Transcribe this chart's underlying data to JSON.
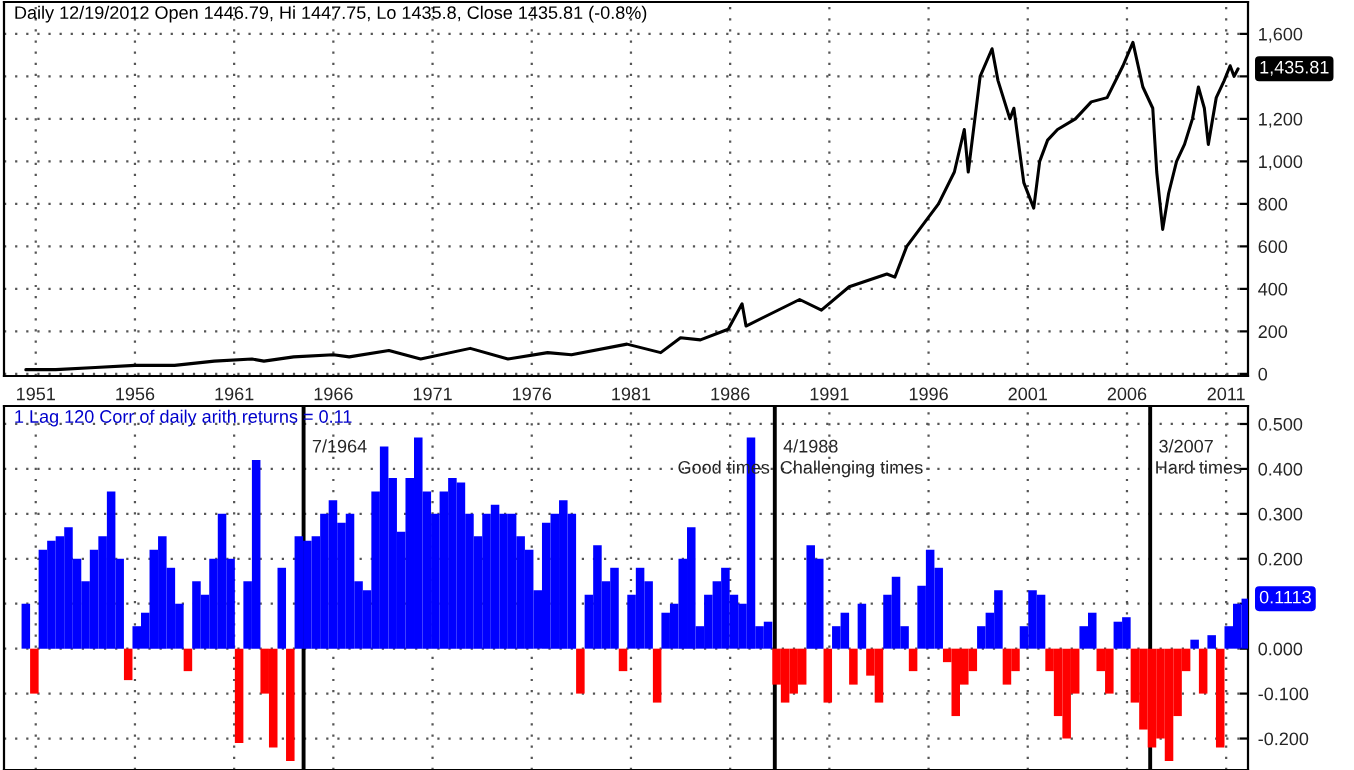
{
  "chart_data": [
    {
      "type": "line",
      "title": "Daily 12/19/2012 Open 1446.79, Hi 1447.75, Lo 1435.8, Close 1435.81 (-0.8%)",
      "grid": true,
      "xlim": [
        1949.4,
        2012.1
      ],
      "ylim": [
        -10,
        1750
      ],
      "xticks": [
        1951,
        1956,
        1961,
        1966,
        1971,
        1976,
        1981,
        1986,
        1991,
        1996,
        2001,
        2006,
        2011
      ],
      "yticks": [
        0,
        200,
        400,
        600,
        800,
        {
          "value": 1000,
          "label": "1,000"
        },
        {
          "value": 1200,
          "label": "1,200"
        },
        {
          "value": 1400,
          "label": null
        },
        {
          "value": 1600,
          "label": "1,600"
        }
      ],
      "series": [
        {
          "color": "#000000",
          "x": [
            1950.5,
            1952,
            1954,
            1956,
            1958,
            1960,
            1961.9,
            1962.5,
            1964,
            1966,
            1966.8,
            1968.8,
            1970.4,
            1972.9,
            1974.8,
            1976.8,
            1978,
            1980.8,
            1982.5,
            1983.5,
            1984.5,
            1985.9,
            1986.6,
            1986.8,
            1989.5,
            1990.6,
            1992,
            1993.9,
            1994.3,
            1994.9,
            1996.5,
            1997.3,
            1997.8,
            1998.0,
            1998.6,
            1999.2,
            1999.5,
            2000.1,
            2000.3,
            2000.8,
            2001.3,
            2001.6,
            2002.0,
            2002.5,
            2003.4,
            2004.2,
            2005.0,
            2005.8,
            2006.3,
            2006.8,
            2007.3,
            2007.5,
            2007.8,
            2008.1,
            2008.5,
            2008.9,
            2009.3,
            2009.6,
            2009.9,
            2010.1,
            2010.5,
            2010.9,
            2011.2,
            2011.4,
            2011.6
          ],
          "values": [
            20,
            20,
            30,
            40,
            40,
            60,
            70,
            60,
            80,
            90,
            80,
            110,
            70,
            120,
            70,
            100,
            90,
            140,
            100,
            170,
            160,
            210,
            330,
            225,
            350,
            300,
            410,
            470,
            455,
            600,
            800,
            950,
            1150,
            950,
            1400,
            1530,
            1380,
            1200,
            1250,
            900,
            780,
            1000,
            1100,
            1150,
            1200,
            1280,
            1300,
            1450,
            1560,
            1350,
            1250,
            950,
            680,
            850,
            1000,
            1080,
            1200,
            1350,
            1250,
            1080,
            1300,
            1380,
            1450,
            1400,
            1435.81
          ]
        }
      ],
      "annotations": [
        {
          "text": "1,435.81",
          "x": 2011.6,
          "y": 1435.81
        }
      ]
    },
    {
      "type": "bar",
      "title": "1 Lag 120 Corr of daily arith returns = 0.11",
      "grid": true,
      "tick_labels": "y",
      "xlim": [
        1949.4,
        2012.1
      ],
      "ylim": [
        -0.27,
        0.54
      ],
      "xticks": [
        1951,
        1956,
        1961,
        1966,
        1971,
        1976,
        1981,
        1986,
        1991,
        1996,
        2001,
        2006,
        2011
      ],
      "yticks": [
        {
          "value": -0.2,
          "label": "-0.200"
        },
        {
          "value": -0.1,
          "label": "-0.100"
        },
        {
          "value": 0,
          "label": "0.000"
        },
        {
          "value": 0.1,
          "label": null
        },
        {
          "value": 0.2,
          "label": "0.200"
        },
        {
          "value": 0.3,
          "label": "0.300"
        },
        {
          "value": 0.4,
          "label": "0.400"
        },
        {
          "value": 0.5,
          "label": "0.500"
        }
      ],
      "x": [
        1950.5,
        1950.93,
        1951.36,
        1951.79,
        1952.22,
        1952.65,
        1953.08,
        1953.51,
        1953.94,
        1954.37,
        1954.8,
        1955.23,
        1955.66,
        1956.09,
        1956.52,
        1956.95,
        1957.38,
        1957.81,
        1958.24,
        1958.67,
        1959.1,
        1959.53,
        1959.96,
        1960.39,
        1960.82,
        1961.25,
        1961.68,
        1962.11,
        1962.54,
        1962.97,
        1963.4,
        1963.83,
        1964.26,
        1964.69,
        1965.12,
        1965.55,
        1965.98,
        1966.41,
        1966.84,
        1967.27,
        1967.7,
        1968.13,
        1968.56,
        1968.99,
        1969.42,
        1969.85,
        1970.28,
        1970.71,
        1971.14,
        1971.57,
        1972.0,
        1972.43,
        1972.86,
        1973.29,
        1973.72,
        1974.15,
        1974.58,
        1975.01,
        1975.44,
        1975.87,
        1976.3,
        1976.73,
        1977.16,
        1977.59,
        1978.02,
        1978.45,
        1978.88,
        1979.31,
        1979.74,
        1980.17,
        1980.6,
        1981.03,
        1981.46,
        1981.89,
        1982.32,
        1982.75,
        1983.18,
        1983.61,
        1984.04,
        1984.47,
        1984.9,
        1985.33,
        1985.76,
        1986.19,
        1986.62,
        1987.05,
        1987.48,
        1987.91,
        1988.34,
        1988.77,
        1989.2,
        1989.63,
        1990.06,
        1990.49,
        1990.92,
        1991.35,
        1991.78,
        1992.21,
        1992.64,
        1993.07,
        1993.5,
        1993.93,
        1994.36,
        1994.79,
        1995.22,
        1995.65,
        1996.08,
        1996.51,
        1996.94,
        1997.37,
        1997.8,
        1998.23,
        1998.66,
        1999.09,
        1999.52,
        1999.95,
        2000.38,
        2000.81,
        2001.24,
        2001.67,
        2002.1,
        2002.53,
        2002.96,
        2003.39,
        2003.82,
        2004.25,
        2004.68,
        2005.11,
        2005.54,
        2005.97,
        2006.4,
        2006.83,
        2007.26,
        2007.69,
        2008.12,
        2008.55,
        2008.98,
        2009.41,
        2009.84,
        2010.27,
        2010.7,
        2011.13,
        2011.56,
        2011.99
      ],
      "values": [
        0.1,
        -0.1,
        0.22,
        0.24,
        0.25,
        0.27,
        0.2,
        0.15,
        0.22,
        0.25,
        0.35,
        0.2,
        -0.07,
        0.05,
        0.08,
        0.22,
        0.25,
        0.18,
        0.1,
        -0.05,
        0.15,
        0.12,
        0.2,
        0.3,
        0.2,
        -0.21,
        0.15,
        0.42,
        -0.1,
        -0.22,
        0.18,
        -0.25,
        0.25,
        0.24,
        0.25,
        0.3,
        0.33,
        0.28,
        0.3,
        0.15,
        0.13,
        0.35,
        0.45,
        0.38,
        0.26,
        0.38,
        0.47,
        0.35,
        0.3,
        0.35,
        0.38,
        0.37,
        0.3,
        0.25,
        0.3,
        0.32,
        0.3,
        0.3,
        0.25,
        0.22,
        0.13,
        0.28,
        0.3,
        0.33,
        0.3,
        -0.1,
        0.12,
        0.23,
        0.15,
        0.18,
        -0.05,
        0.12,
        0.18,
        0.15,
        -0.12,
        0.08,
        0.1,
        0.2,
        0.27,
        0.05,
        0.12,
        0.15,
        0.18,
        0.12,
        0.1,
        0.47,
        0.05,
        0.06,
        -0.08,
        -0.12,
        -0.1,
        -0.08,
        0.23,
        0.2,
        -0.12,
        0.05,
        0.08,
        -0.08,
        0.1,
        -0.06,
        -0.12,
        0.12,
        0.16,
        0.05,
        -0.05,
        0.14,
        0.22,
        0.18,
        -0.03,
        -0.15,
        -0.08,
        -0.05,
        0.05,
        0.08,
        0.13,
        -0.08,
        -0.05,
        0.05,
        0.13,
        0.12,
        -0.05,
        -0.15,
        -0.2,
        -0.1,
        0.05,
        0.08,
        -0.05,
        -0.1,
        0.06,
        0.07,
        -0.12,
        -0.18,
        -0.22,
        -0.2,
        -0.25,
        -0.15,
        -0.05,
        0.02,
        -0.1,
        0.03,
        -0.22,
        0.05,
        0.1,
        0.1113
      ],
      "colors": [
        "#0000ff",
        "#ff0000",
        "#0000ff",
        "#0000ff",
        "#0000ff",
        "#0000ff",
        "#0000ff",
        "#0000ff",
        "#0000ff",
        "#0000ff",
        "#0000ff",
        "#0000ff",
        "#ff0000",
        "#0000ff",
        "#0000ff",
        "#0000ff",
        "#0000ff",
        "#0000ff",
        "#0000ff",
        "#ff0000",
        "#0000ff",
        "#0000ff",
        "#0000ff",
        "#0000ff",
        "#0000ff",
        "#ff0000",
        "#0000ff",
        "#0000ff",
        "#ff0000",
        "#ff0000",
        "#0000ff",
        "#ff0000",
        "#0000ff",
        "#0000ff",
        "#0000ff",
        "#0000ff",
        "#0000ff",
        "#0000ff",
        "#0000ff",
        "#0000ff",
        "#0000ff",
        "#0000ff",
        "#0000ff",
        "#0000ff",
        "#0000ff",
        "#0000ff",
        "#0000ff",
        "#0000ff",
        "#0000ff",
        "#0000ff",
        "#0000ff",
        "#0000ff",
        "#0000ff",
        "#0000ff",
        "#0000ff",
        "#0000ff",
        "#0000ff",
        "#0000ff",
        "#0000ff",
        "#0000ff",
        "#0000ff",
        "#0000ff",
        "#0000ff",
        "#0000ff",
        "#0000ff",
        "#ff0000",
        "#0000ff",
        "#0000ff",
        "#0000ff",
        "#0000ff",
        "#ff0000",
        "#0000ff",
        "#0000ff",
        "#0000ff",
        "#ff0000",
        "#0000ff",
        "#0000ff",
        "#0000ff",
        "#0000ff",
        "#0000ff",
        "#0000ff",
        "#0000ff",
        "#0000ff",
        "#0000ff",
        "#0000ff",
        "#0000ff",
        "#0000ff",
        "#0000ff",
        "#ff0000",
        "#ff0000",
        "#ff0000",
        "#ff0000",
        "#0000ff",
        "#0000ff",
        "#ff0000",
        "#0000ff",
        "#0000ff",
        "#ff0000",
        "#0000ff",
        "#ff0000",
        "#ff0000",
        "#0000ff",
        "#0000ff",
        "#0000ff",
        "#ff0000",
        "#0000ff",
        "#0000ff",
        "#0000ff",
        "#ff0000",
        "#ff0000",
        "#ff0000",
        "#ff0000",
        "#0000ff",
        "#0000ff",
        "#0000ff",
        "#ff0000",
        "#ff0000",
        "#0000ff",
        "#0000ff",
        "#0000ff",
        "#ff0000",
        "#ff0000",
        "#ff0000",
        "#ff0000",
        "#0000ff",
        "#0000ff",
        "#ff0000",
        "#ff0000",
        "#0000ff",
        "#0000ff",
        "#ff0000",
        "#ff0000",
        "#ff0000",
        "#ff0000",
        "#ff0000",
        "#ff0000",
        "#ff0000",
        "#0000ff",
        "#ff0000",
        "#0000ff",
        "#ff0000",
        "#0000ff",
        "#0000ff",
        "#0000ff"
      ],
      "ref_lines": [
        {
          "axis": "x",
          "value": 1964.5,
          "label": "7/1964",
          "color": "#000000"
        },
        {
          "axis": "x",
          "value": 1988.25,
          "label": "4/1988",
          "color": "#000000"
        },
        {
          "axis": "x",
          "value": 2007.17,
          "label": "3/2007",
          "color": "#000000"
        }
      ],
      "annotations": [
        {
          "text": "Good times",
          "x": 1988.0,
          "y": 0.4
        },
        {
          "text": "Challenging times",
          "x": 1988.5,
          "y": 0.4
        },
        {
          "text": "Hard times",
          "x": 2007.4,
          "y": 0.4
        },
        {
          "text": "0.1113",
          "x": 2011.99,
          "y": 0.1113
        }
      ]
    }
  ]
}
